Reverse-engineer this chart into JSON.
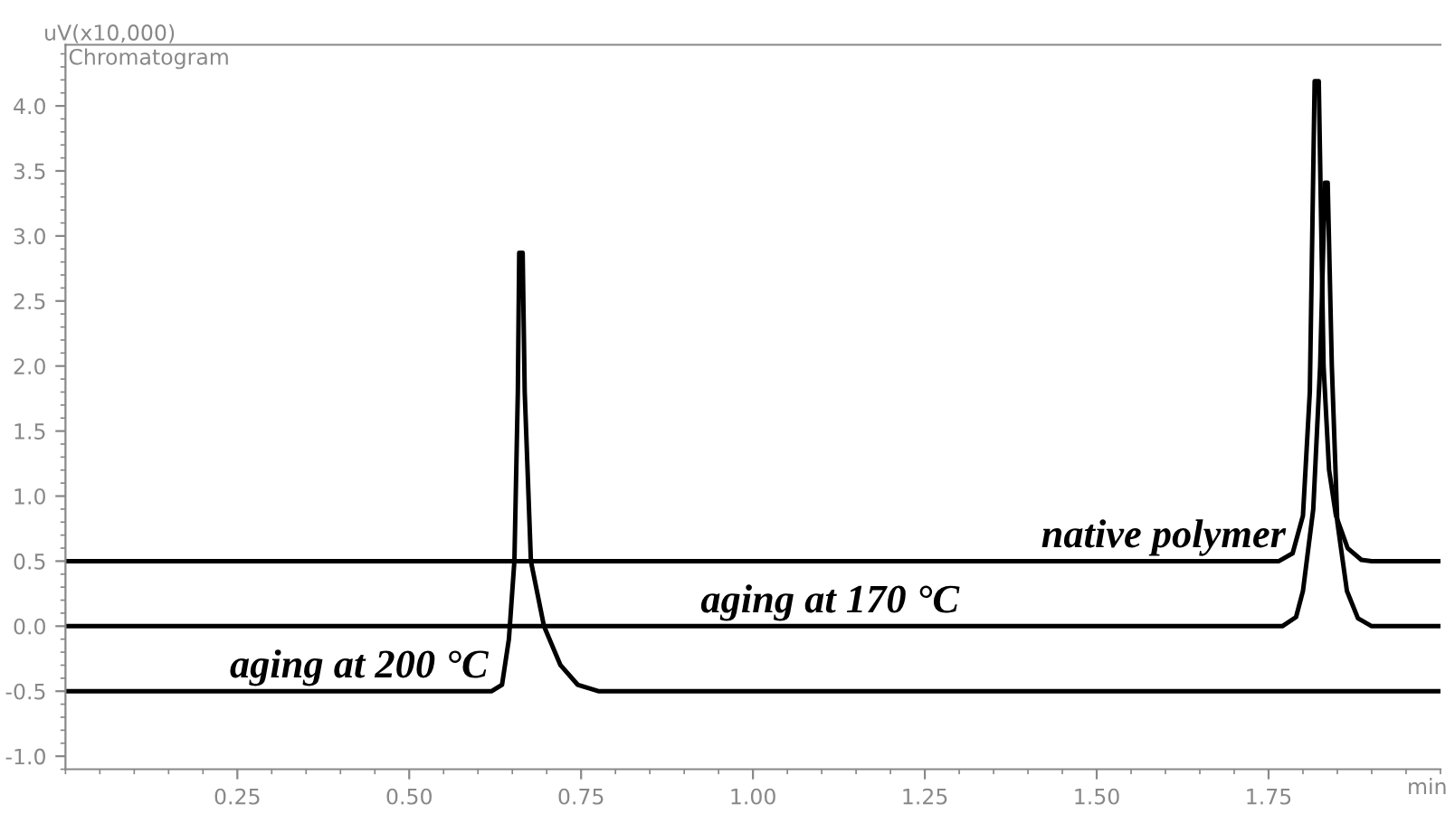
{
  "chart_data": {
    "type": "line",
    "subtitle": "Chromatogram",
    "ylabel": "uV(x10,000)",
    "xlabel": "min",
    "xlim": [
      0,
      2.0
    ],
    "ylim": [
      -1.1,
      4.47
    ],
    "xticks": [
      {
        "value": 0.25,
        "label": "0.25"
      },
      {
        "value": 0.5,
        "label": "0.50"
      },
      {
        "value": 0.75,
        "label": "0.75"
      },
      {
        "value": 1.0,
        "label": "1.00"
      },
      {
        "value": 1.25,
        "label": "1.25"
      },
      {
        "value": 1.5,
        "label": "1.50"
      },
      {
        "value": 1.75,
        "label": "1.75"
      }
    ],
    "yticks": [
      {
        "value": -1.0,
        "label": "-1.0"
      },
      {
        "value": -0.5,
        "label": "-0.5"
      },
      {
        "value": 0.0,
        "label": "0.0"
      },
      {
        "value": 0.5,
        "label": "0.5"
      },
      {
        "value": 1.0,
        "label": "1.0"
      },
      {
        "value": 1.5,
        "label": "1.5"
      },
      {
        "value": 2.0,
        "label": "2.0"
      },
      {
        "value": 2.5,
        "label": "2.5"
      },
      {
        "value": 3.0,
        "label": "3.0"
      },
      {
        "value": 3.5,
        "label": "3.5"
      },
      {
        "value": 4.0,
        "label": "4.0"
      }
    ],
    "grid": false,
    "marker": "none",
    "line_style": "solid",
    "series": [
      {
        "name": "native polymer",
        "color": "#000000",
        "x": [
          0,
          1.765,
          1.785,
          1.8,
          1.81,
          1.817,
          1.823,
          1.83,
          1.838,
          1.848,
          1.865,
          1.885,
          1.9,
          2.0
        ],
        "values": [
          0.5,
          0.5,
          0.56,
          0.85,
          1.8,
          4.19,
          4.19,
          2.0,
          1.2,
          0.85,
          0.6,
          0.51,
          0.5,
          0.5
        ]
      },
      {
        "name": "aging at 170 °C",
        "color": "#000000",
        "x": [
          0,
          1.77,
          1.79,
          1.8,
          1.815,
          1.825,
          1.832,
          1.836,
          1.842,
          1.85,
          1.864,
          1.88,
          1.9,
          2.0
        ],
        "values": [
          0,
          0,
          0.07,
          0.27,
          0.9,
          2.0,
          3.41,
          3.41,
          2.0,
          0.8,
          0.27,
          0.06,
          0,
          0
        ]
      },
      {
        "name": "aging at 200 °C",
        "color": "#000000",
        "x": [
          0,
          0.62,
          0.635,
          0.645,
          0.653,
          0.658,
          0.66,
          0.665,
          0.668,
          0.677,
          0.696,
          0.72,
          0.745,
          0.775,
          2.0
        ],
        "values": [
          -0.5,
          -0.5,
          -0.45,
          -0.1,
          0.5,
          1.8,
          2.87,
          2.87,
          1.8,
          0.5,
          0.0,
          -0.3,
          -0.45,
          -0.5,
          -0.5
        ]
      }
    ]
  }
}
